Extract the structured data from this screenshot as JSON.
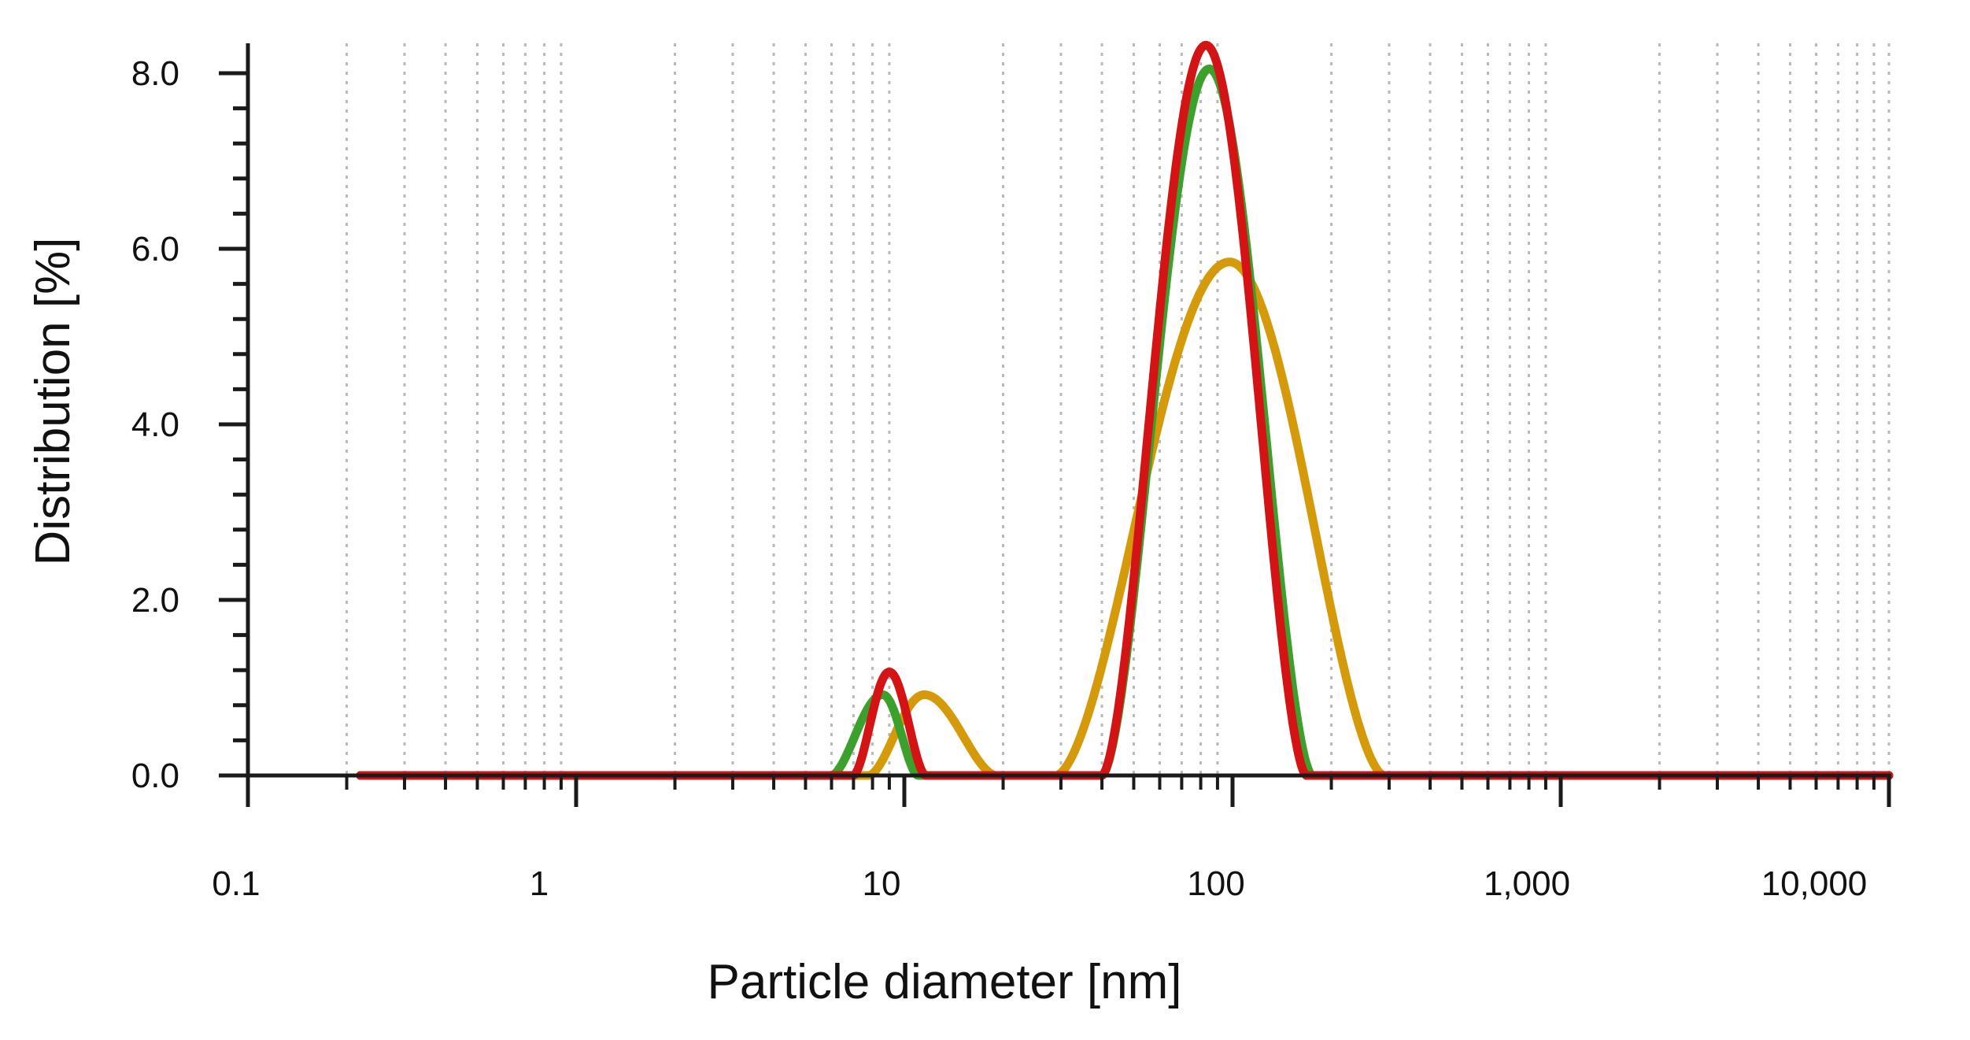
{
  "chart_data": {
    "type": "line",
    "xlabel": "Particle diameter [nm]",
    "ylabel": "Distribution [%]",
    "x_scale": "log",
    "xlim": [
      0.1,
      10000
    ],
    "ylim": [
      0,
      8.4
    ],
    "grid": "vertical dotted lines at log minor ticks",
    "x_ticks": [
      {
        "value": 0.1,
        "label": "0.1"
      },
      {
        "value": 1,
        "label": "1"
      },
      {
        "value": 10,
        "label": "10"
      },
      {
        "value": 100,
        "label": "100"
      },
      {
        "value": 1000,
        "label": "1,000"
      },
      {
        "value": 10000,
        "label": "10,000"
      }
    ],
    "y_ticks": [
      {
        "value": 0,
        "label": "0.0"
      },
      {
        "value": 2,
        "label": "2.0"
      },
      {
        "value": 4,
        "label": "4.0"
      },
      {
        "value": 6,
        "label": "6.0"
      },
      {
        "value": 8,
        "label": "8.0"
      }
    ],
    "series": [
      {
        "color": "#d49a0a",
        "baseline_range": [
          0.22,
          10000
        ],
        "peaks": [
          {
            "start": 7.8,
            "end": 19.0,
            "peak_x": 11.5,
            "peak_y": 0.92
          },
          {
            "start": 29.0,
            "end": 290.0,
            "peak_x": 98.0,
            "peak_y": 5.85
          }
        ]
      },
      {
        "color": "#3ca02c",
        "baseline_range": [
          0.22,
          10000
        ],
        "peaks": [
          {
            "start": 6.0,
            "end": 11.0,
            "peak_x": 8.6,
            "peak_y": 0.92
          },
          {
            "start": 40.0,
            "end": 175.0,
            "peak_x": 85.0,
            "peak_y": 8.05
          }
        ]
      },
      {
        "color": "#d41414",
        "baseline_range": [
          0.22,
          10000
        ],
        "peaks": [
          {
            "start": 7.0,
            "end": 11.6,
            "peak_x": 9.0,
            "peak_y": 1.18
          },
          {
            "start": 40.0,
            "end": 168.0,
            "peak_x": 83.0,
            "peak_y": 8.32
          }
        ]
      }
    ]
  }
}
